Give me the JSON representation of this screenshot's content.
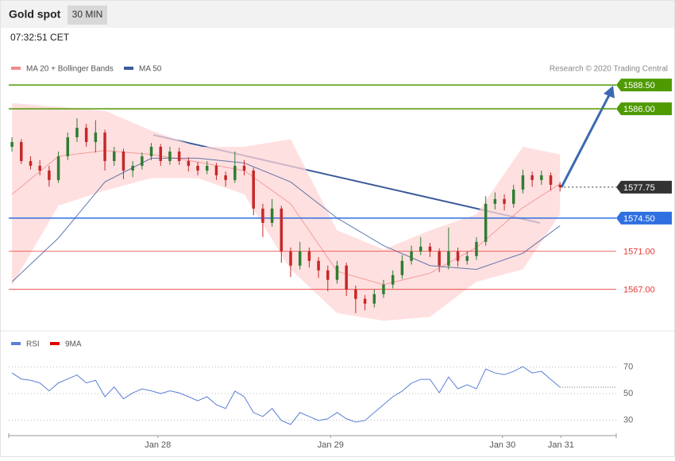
{
  "header": {
    "title": "Gold spot",
    "timeframe": "30 MIN",
    "time": "07:32:51 CET"
  },
  "chart_data": [
    {
      "type": "candlestick",
      "source": "Research © 2020 Trading Central",
      "up_color": "#2e7d32",
      "down_color": "#c62828",
      "xlim": [
        -0.35,
        65.05
      ],
      "ylim": [
        1562.8,
        1591.6
      ],
      "candles": [
        [
          1582,
          1583,
          1581.5,
          1582.5
        ],
        [
          1582.5,
          1582.8,
          1580.2,
          1580.5
        ],
        [
          1580.5,
          1581,
          1579.6,
          1580
        ],
        [
          1580,
          1580.6,
          1579,
          1579.5
        ],
        [
          1579.5,
          1580,
          1577.8,
          1578.5
        ],
        [
          1578.5,
          1581.5,
          1578.2,
          1581
        ],
        [
          1581,
          1583.5,
          1580.6,
          1583
        ],
        [
          1583,
          1585,
          1582.5,
          1584
        ],
        [
          1584,
          1584.4,
          1582,
          1582.5
        ],
        [
          1582.5,
          1584.8,
          1581.4,
          1583.5
        ],
        [
          1583.5,
          1583.8,
          1579.5,
          1580.5
        ],
        [
          1580.5,
          1582,
          1580,
          1581.5
        ],
        [
          1581.5,
          1581.8,
          1578.6,
          1579.5
        ],
        [
          1579.5,
          1580.5,
          1578.8,
          1580
        ],
        [
          1580,
          1581.4,
          1579.6,
          1581
        ],
        [
          1581,
          1582.4,
          1580.6,
          1582
        ],
        [
          1582,
          1582.3,
          1580,
          1580.5
        ],
        [
          1580.5,
          1582,
          1580.1,
          1581.5
        ],
        [
          1581.5,
          1581.9,
          1580.1,
          1580.5
        ],
        [
          1580.5,
          1580.9,
          1579.4,
          1580
        ],
        [
          1580,
          1580.4,
          1579,
          1579.5
        ],
        [
          1579.5,
          1580.5,
          1579.1,
          1580
        ],
        [
          1580,
          1580.3,
          1578.5,
          1579
        ],
        [
          1579,
          1579.4,
          1577.8,
          1578.5
        ],
        [
          1578.5,
          1581.5,
          1578.2,
          1580
        ],
        [
          1580,
          1580.6,
          1579,
          1579.5
        ],
        [
          1579.5,
          1579.8,
          1574.8,
          1575.5
        ],
        [
          1575.5,
          1576,
          1572.5,
          1574
        ],
        [
          1574,
          1576.5,
          1573.6,
          1575.5
        ],
        [
          1575.5,
          1575.8,
          1569.8,
          1571
        ],
        [
          1571,
          1571.4,
          1568.3,
          1569.5
        ],
        [
          1569.5,
          1572,
          1569.1,
          1571
        ],
        [
          1571,
          1571.4,
          1569.3,
          1570
        ],
        [
          1570,
          1570.4,
          1568.2,
          1569
        ],
        [
          1569,
          1569.5,
          1566.8,
          1568
        ],
        [
          1568,
          1570,
          1567.6,
          1569.5
        ],
        [
          1569.5,
          1569.8,
          1566.3,
          1567
        ],
        [
          1567,
          1567.4,
          1564.5,
          1566
        ],
        [
          1566,
          1566.4,
          1564.8,
          1565.5
        ],
        [
          1565.5,
          1567,
          1565.1,
          1566.5
        ],
        [
          1566.5,
          1568,
          1566.1,
          1567.5
        ],
        [
          1567.5,
          1569,
          1567.1,
          1568.5
        ],
        [
          1568.5,
          1570.6,
          1568.1,
          1570
        ],
        [
          1570,
          1571.6,
          1569.6,
          1571
        ],
        [
          1571,
          1572.5,
          1570.6,
          1571.5
        ],
        [
          1571.5,
          1571.9,
          1570.4,
          1571
        ],
        [
          1571,
          1571.3,
          1568.8,
          1569.5
        ],
        [
          1569.5,
          1573.5,
          1569.1,
          1571
        ],
        [
          1571,
          1571.4,
          1569.4,
          1570
        ],
        [
          1570,
          1571,
          1569.6,
          1570.5
        ],
        [
          1570.5,
          1572.5,
          1570.1,
          1572
        ],
        [
          1572,
          1576.8,
          1571.6,
          1576
        ],
        [
          1576,
          1577.2,
          1575.4,
          1576.5
        ],
        [
          1576.5,
          1577,
          1575.3,
          1576
        ],
        [
          1576,
          1578,
          1575.6,
          1577.5
        ],
        [
          1577.5,
          1579.6,
          1577.1,
          1579
        ],
        [
          1579,
          1579.4,
          1577.8,
          1578.5
        ],
        [
          1578.5,
          1579.5,
          1578,
          1579
        ],
        [
          1579,
          1579.3,
          1577.4,
          1578
        ],
        [
          1578,
          1578.3,
          1577.3,
          1577.75
        ]
      ],
      "series": [
        {
          "name": "MA 20 + Bollinger Bands",
          "color": "#f28b8b",
          "x": [
            0,
            5,
            10,
            15,
            20,
            25,
            30,
            35,
            40,
            45,
            50,
            55,
            59
          ],
          "values": [
            1577,
            1581,
            1581.6,
            1581.2,
            1580.4,
            1579.5,
            1576,
            1568.9,
            1567.5,
            1568.7,
            1571.4,
            1575.6,
            1578.1
          ],
          "upper": [
            1586.6,
            1586.2,
            1585.8,
            1583.7,
            1582,
            1582,
            1582.8,
            1573.2,
            1571.2,
            1573.2,
            1574.9,
            1582,
            1581.2
          ],
          "lower": [
            1567.4,
            1575.8,
            1577.4,
            1578.7,
            1578.7,
            1577,
            1569.1,
            1564.5,
            1563.7,
            1564.1,
            1567.8,
            1569.1,
            1574.9
          ]
        },
        {
          "name": "MA 50",
          "color": "#3b5a9a",
          "x": [
            0,
            5,
            10,
            15,
            20,
            25,
            30,
            35,
            40,
            45,
            50,
            55,
            59
          ],
          "values": [
            1567.8,
            1572.4,
            1578.3,
            1580.8,
            1580.8,
            1580.3,
            1578.3,
            1574.5,
            1571.6,
            1569.5,
            1569.1,
            1570.8,
            1573.7
          ]
        }
      ],
      "levels": [
        {
          "value": 1588.5,
          "label": "1588.50",
          "color": "#4f9a00",
          "boxed": true,
          "dashed": false
        },
        {
          "value": 1586,
          "label": "1586.00",
          "color": "#4f9a00",
          "boxed": true,
          "dashed": false
        },
        {
          "value": 1577.75,
          "label": "1577.75",
          "color": "#333333",
          "boxed": true,
          "dashed": true
        },
        {
          "value": 1574.5,
          "label": "1574.50",
          "color": "#2f6fe0",
          "boxed": true,
          "dashed": false
        },
        {
          "value": 1571,
          "label": "1571.00",
          "color": "#e53935",
          "boxed": false,
          "dashed": false
        },
        {
          "value": 1567,
          "label": "1567.00",
          "color": "#e53935",
          "boxed": false,
          "dashed": false
        }
      ]
    },
    {
      "type": "line",
      "xlim": [
        -0.35,
        65.05
      ],
      "ylim": [
        20.7,
        77.5
      ],
      "yticks": [
        30,
        50,
        70
      ],
      "xticks": [
        {
          "value": 15.7,
          "label": "Jan 28"
        },
        {
          "value": 34.3,
          "label": "Jan 29"
        },
        {
          "value": 52.8,
          "label": "Jan 30"
        },
        {
          "value": 59.1,
          "label": "Jan 31"
        }
      ],
      "series": [
        {
          "name": "RSI",
          "color": "#5b7fd6",
          "values": [
            65.5,
            61,
            60,
            58,
            52,
            58,
            61,
            64,
            58,
            60,
            47.6,
            55,
            46,
            50.5,
            53.5,
            52,
            50,
            52,
            50.5,
            47.6,
            44.6,
            47.6,
            41.6,
            38.7,
            51.8,
            47.6,
            35.7,
            32.7,
            38.7,
            29.7,
            26.7,
            35.7,
            32.7,
            29.7,
            31,
            35.7,
            31,
            28.5,
            29.7,
            35.7,
            41.6,
            47.6,
            51.8,
            57.8,
            60.7,
            60.7,
            50.6,
            62.5,
            53.6,
            56.6,
            53.6,
            68.5,
            65.5,
            64.3,
            66.7,
            70.3,
            65.5,
            66.7,
            60.7,
            54.8
          ]
        },
        {
          "name": "9MA",
          "color": "#e00000",
          "values": [
            null,
            null,
            null,
            null,
            null,
            null,
            null,
            null,
            null,
            null,
            null,
            null,
            null,
            null,
            null,
            null,
            null,
            null,
            null,
            null,
            null,
            null,
            null,
            null,
            null,
            null,
            null,
            null,
            null,
            null,
            null,
            null,
            null,
            null,
            null,
            null,
            null,
            null,
            null,
            null,
            null,
            null,
            null,
            null,
            null,
            null,
            null,
            null,
            null,
            null,
            null,
            null,
            null,
            null,
            null,
            null,
            null,
            null,
            null,
            null
          ]
        }
      ]
    }
  ]
}
